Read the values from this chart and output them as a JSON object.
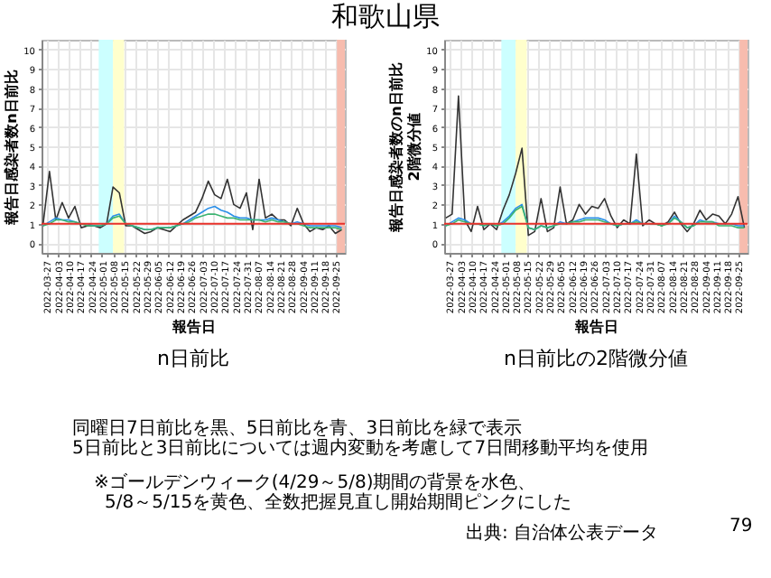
{
  "chart_data": [
    {
      "type": "line",
      "title": "n日前比",
      "xlabel": "報告日",
      "ylabel": "報告日感染者数n日前比",
      "x": [
        "2022-03-25",
        "2022-03-29",
        "2022-04-02",
        "2022-04-06",
        "2022-04-10",
        "2022-04-14",
        "2022-04-18",
        "2022-04-22",
        "2022-04-26",
        "2022-04-30",
        "2022-05-04",
        "2022-05-08",
        "2022-05-12",
        "2022-05-16",
        "2022-05-20",
        "2022-05-24",
        "2022-05-28",
        "2022-06-01",
        "2022-06-05",
        "2022-06-09",
        "2022-06-13",
        "2022-06-17",
        "2022-06-21",
        "2022-06-25",
        "2022-06-29",
        "2022-07-03",
        "2022-07-07",
        "2022-07-11",
        "2022-07-15",
        "2022-07-19",
        "2022-07-23",
        "2022-07-27",
        "2022-07-31",
        "2022-08-04",
        "2022-08-08",
        "2022-08-12",
        "2022-08-16",
        "2022-08-20",
        "2022-08-24",
        "2022-08-28",
        "2022-09-01",
        "2022-09-05",
        "2022-09-09",
        "2022-09-13",
        "2022-09-17",
        "2022-09-21",
        "2022-09-25",
        "2022-09-29"
      ],
      "series": [
        {
          "color": "#333333",
          "values": [
            1.0,
            3.7,
            1.2,
            2.1,
            1.3,
            1.9,
            0.8,
            0.9,
            0.9,
            0.8,
            1.0,
            2.9,
            2.6,
            0.9,
            0.9,
            0.7,
            0.5,
            0.6,
            0.8,
            0.7,
            0.6,
            0.9,
            1.2,
            1.4,
            1.6,
            2.3,
            3.2,
            2.5,
            2.3,
            3.3,
            2.0,
            1.8,
            2.6,
            0.7,
            3.3,
            1.3,
            1.5,
            1.2,
            1.2,
            0.9,
            1.8,
            1.0,
            0.6,
            0.8,
            0.7,
            0.9,
            0.5,
            0.7
          ]
        },
        {
          "color": "#2b8fe8",
          "values": [
            0.9,
            1.1,
            1.3,
            1.2,
            1.2,
            1.1,
            1.0,
            1.0,
            0.9,
            0.9,
            1.0,
            1.4,
            1.5,
            1.0,
            0.9,
            0.8,
            0.7,
            0.7,
            0.8,
            0.8,
            0.8,
            0.9,
            1.0,
            1.2,
            1.4,
            1.6,
            1.8,
            1.9,
            1.7,
            1.6,
            1.4,
            1.3,
            1.3,
            1.2,
            1.2,
            1.2,
            1.3,
            1.2,
            1.1,
            1.0,
            1.1,
            1.0,
            0.9,
            0.9,
            0.9,
            0.9,
            0.9,
            0.8
          ]
        },
        {
          "color": "#3cb371",
          "values": [
            0.9,
            1.0,
            1.2,
            1.2,
            1.1,
            1.1,
            1.0,
            0.9,
            0.9,
            0.9,
            1.0,
            1.3,
            1.4,
            1.0,
            0.9,
            0.8,
            0.7,
            0.7,
            0.8,
            0.8,
            0.8,
            0.9,
            1.0,
            1.1,
            1.3,
            1.4,
            1.5,
            1.5,
            1.4,
            1.3,
            1.3,
            1.2,
            1.2,
            1.2,
            1.2,
            1.1,
            1.2,
            1.1,
            1.1,
            1.0,
            1.0,
            0.9,
            0.8,
            0.8,
            0.8,
            0.8,
            0.8,
            0.7
          ]
        }
      ],
      "xlim": [
        "2022-03-24",
        "2022-10-01"
      ],
      "xticks": [
        "2022-03-27",
        "2022-04-03",
        "2022-04-10",
        "2022-04-17",
        "2022-04-24",
        "2022-05-01",
        "2022-05-08",
        "2022-05-15",
        "2022-05-22",
        "2022-05-29",
        "2022-06-05",
        "2022-06-12",
        "2022-06-19",
        "2022-06-26",
        "2022-07-03",
        "2022-07-10",
        "2022-07-17",
        "2022-07-24",
        "2022-07-31",
        "2022-08-07",
        "2022-08-14",
        "2022-08-21",
        "2022-08-28",
        "2022-09-04",
        "2022-09-11",
        "2022-09-18",
        "2022-09-25"
      ],
      "ylim": [
        -0.5,
        10.5
      ],
      "yticks": [
        0,
        1,
        2,
        3,
        4,
        5,
        6,
        7,
        8,
        9,
        10
      ],
      "grid": true,
      "ref_lines": [
        {
          "axis": "y",
          "value": 1,
          "color": "#e8312a"
        }
      ],
      "bands": [
        {
          "axis": "x",
          "from": "2022-04-29",
          "to": "2022-05-08",
          "color": "#ccffff"
        },
        {
          "axis": "x",
          "from": "2022-05-08",
          "to": "2022-05-15",
          "color": "#ffffcc"
        },
        {
          "axis": "x",
          "from": "2022-09-26",
          "to": "2022-10-01",
          "color": "#f7bcae"
        }
      ]
    },
    {
      "type": "line",
      "title": "n日前比の2階微分値",
      "xlabel": "報告日",
      "ylabel": "報告日感染者数のn日前比 2階微分値",
      "x": [
        "2022-03-25",
        "2022-03-29",
        "2022-04-02",
        "2022-04-06",
        "2022-04-10",
        "2022-04-14",
        "2022-04-18",
        "2022-04-22",
        "2022-04-26",
        "2022-04-30",
        "2022-05-04",
        "2022-05-08",
        "2022-05-12",
        "2022-05-16",
        "2022-05-20",
        "2022-05-24",
        "2022-05-28",
        "2022-06-01",
        "2022-06-05",
        "2022-06-09",
        "2022-06-13",
        "2022-06-17",
        "2022-06-21",
        "2022-06-25",
        "2022-06-29",
        "2022-07-03",
        "2022-07-07",
        "2022-07-11",
        "2022-07-15",
        "2022-07-19",
        "2022-07-23",
        "2022-07-27",
        "2022-07-31",
        "2022-08-04",
        "2022-08-08",
        "2022-08-12",
        "2022-08-16",
        "2022-08-20",
        "2022-08-24",
        "2022-08-28",
        "2022-09-01",
        "2022-09-05",
        "2022-09-09",
        "2022-09-13",
        "2022-09-17",
        "2022-09-21",
        "2022-09-25",
        "2022-09-29"
      ],
      "series": [
        {
          "color": "#333333",
          "values": [
            1.3,
            1.5,
            7.6,
            1.2,
            0.6,
            1.9,
            0.7,
            1.0,
            0.7,
            1.7,
            2.5,
            3.6,
            4.9,
            0.4,
            0.6,
            2.3,
            0.6,
            0.8,
            2.9,
            1.0,
            1.2,
            2.0,
            1.5,
            1.9,
            1.8,
            2.3,
            1.4,
            0.8,
            1.2,
            1.0,
            4.6,
            0.9,
            1.2,
            1.0,
            0.9,
            1.1,
            1.6,
            1.0,
            0.6,
            1.0,
            1.7,
            1.2,
            1.5,
            1.4,
            1.0,
            1.5,
            2.4,
            0.8
          ]
        },
        {
          "color": "#2b8fe8",
          "values": [
            0.9,
            1.1,
            1.3,
            1.2,
            1.0,
            1.0,
            0.9,
            1.0,
            0.9,
            1.1,
            1.4,
            1.8,
            2.0,
            0.8,
            0.7,
            0.9,
            0.8,
            0.9,
            1.1,
            1.0,
            1.1,
            1.2,
            1.3,
            1.3,
            1.3,
            1.2,
            1.0,
            0.9,
            1.0,
            1.0,
            1.2,
            1.0,
            1.0,
            1.0,
            1.0,
            1.0,
            1.4,
            1.1,
            0.8,
            0.9,
            1.2,
            1.1,
            1.1,
            1.0,
            1.0,
            1.0,
            0.9,
            0.9
          ]
        },
        {
          "color": "#3cb371",
          "values": [
            0.9,
            1.0,
            1.2,
            1.1,
            1.0,
            1.0,
            0.9,
            1.0,
            0.9,
            1.0,
            1.3,
            1.7,
            1.9,
            0.8,
            0.7,
            0.9,
            0.8,
            0.9,
            1.0,
            1.0,
            1.1,
            1.1,
            1.2,
            1.2,
            1.2,
            1.1,
            1.0,
            0.9,
            1.0,
            1.0,
            1.1,
            1.0,
            1.0,
            1.0,
            0.9,
            1.0,
            1.3,
            1.1,
            0.8,
            0.9,
            1.1,
            1.1,
            1.1,
            0.9,
            0.9,
            0.9,
            0.8,
            0.8
          ]
        }
      ],
      "xlim": [
        "2022-03-24",
        "2022-10-01"
      ],
      "xticks": [
        "2022-03-27",
        "2022-04-03",
        "2022-04-10",
        "2022-04-17",
        "2022-04-24",
        "2022-05-01",
        "2022-05-08",
        "2022-05-15",
        "2022-05-22",
        "2022-05-29",
        "2022-06-05",
        "2022-06-12",
        "2022-06-19",
        "2022-06-26",
        "2022-07-03",
        "2022-07-10",
        "2022-07-17",
        "2022-07-24",
        "2022-07-31",
        "2022-08-07",
        "2022-08-14",
        "2022-08-21",
        "2022-08-28",
        "2022-09-04",
        "2022-09-11",
        "2022-09-18",
        "2022-09-25"
      ],
      "ylim": [
        -0.5,
        10.5
      ],
      "yticks": [
        0,
        1,
        2,
        3,
        4,
        5,
        6,
        7,
        8,
        9,
        10
      ],
      "grid": true,
      "ref_lines": [
        {
          "axis": "y",
          "value": 1,
          "color": "#e8312a"
        }
      ],
      "bands": [
        {
          "axis": "x",
          "from": "2022-04-29",
          "to": "2022-05-08",
          "color": "#ccffff"
        },
        {
          "axis": "x",
          "from": "2022-05-08",
          "to": "2022-05-15",
          "color": "#ffffcc"
        },
        {
          "axis": "x",
          "from": "2022-09-26",
          "to": "2022-10-01",
          "color": "#f7bcae"
        }
      ]
    },
    {
      "type": "other",
      "title": "和歌山県",
      "annotations": [
        "同曜日7日前比を黒、5日前比を青、3日前比を緑で表示",
        "5日前比と3日前比については週内変動を考慮して7日間移動平均を使用",
        "※ゴールデンウィーク(4/29～5/8)期間の背景を水色、",
        "5/8～5/15を黄色、全数把握見直し開始期間ピンクにした",
        "出典: 自治体公表データ",
        "79"
      ]
    }
  ]
}
